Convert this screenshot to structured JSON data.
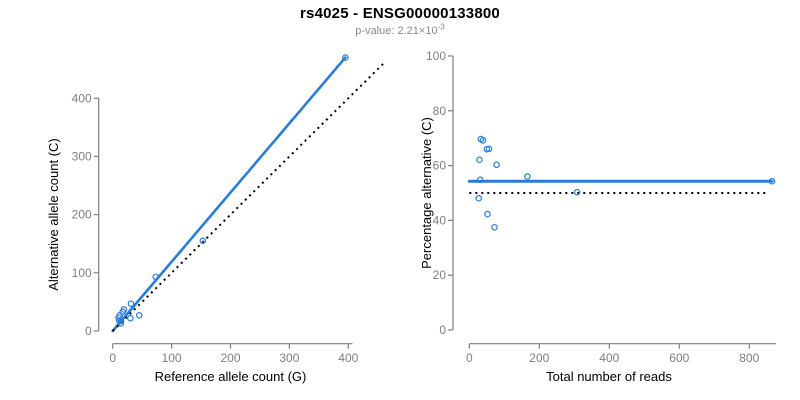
{
  "header": {
    "title": "rs4025 - ENSG00000133800",
    "subtitle_prefix": "p-value: ",
    "p_value_mantissa": "2.21",
    "times_ten": "×10",
    "p_value_exponent": "-3"
  },
  "colors": {
    "accent_blue": "#287CDC",
    "axis_gray": "#7f7f7f",
    "dotted_black": "#000000",
    "subtitle_gray": "#8a8a8a"
  },
  "chart_data": [
    {
      "id": "ref-vs-alt-scatter",
      "type": "scatter",
      "title": "",
      "xlabel": "Reference allele count (G)",
      "ylabel": "Alternative allele count (C)",
      "xlim": [
        0,
        410
      ],
      "ylim": [
        0,
        480
      ],
      "xticks": [
        0,
        100,
        200,
        300,
        400
      ],
      "yticks": [
        0,
        100,
        200,
        300,
        400
      ],
      "grid": false,
      "legend": null,
      "points": [
        [
          10,
          23
        ],
        [
          12,
          27
        ],
        [
          17,
          33
        ],
        [
          19,
          37
        ],
        [
          11,
          18
        ],
        [
          31,
          47
        ],
        [
          14,
          17
        ],
        [
          73,
          93
        ],
        [
          395,
          470
        ],
        [
          153,
          155
        ],
        [
          14,
          13
        ],
        [
          30,
          22
        ],
        [
          45,
          27
        ]
      ],
      "lines": [
        {
          "name": "fit-line",
          "style": "solid",
          "color": "#287CDC",
          "width": 2.6,
          "from": [
            0,
            0
          ],
          "to": [
            395,
            470
          ]
        },
        {
          "name": "identity-line",
          "style": "dotted",
          "color": "#000000",
          "width": 2,
          "from": [
            0,
            0
          ],
          "to": [
            460,
            460
          ]
        }
      ]
    },
    {
      "id": "reads-vs-percentage-scatter",
      "type": "scatter",
      "title": "",
      "xlabel": "Total number of reads",
      "ylabel": "Percentage alternative (C)",
      "xlim": [
        0,
        880
      ],
      "ylim": [
        0,
        100
      ],
      "xticks": [
        0,
        200,
        400,
        600,
        800
      ],
      "yticks": [
        0,
        20,
        40,
        60,
        80,
        100
      ],
      "grid": false,
      "legend": null,
      "points": [
        [
          33,
          69.7
        ],
        [
          39,
          69.2
        ],
        [
          50,
          66.0
        ],
        [
          56,
          66.1
        ],
        [
          29,
          62.1
        ],
        [
          78,
          60.3
        ],
        [
          31,
          54.8
        ],
        [
          166,
          56.0
        ],
        [
          865,
          54.3
        ],
        [
          308,
          50.3
        ],
        [
          27,
          48.1
        ],
        [
          52,
          42.3
        ],
        [
          72,
          37.5
        ]
      ],
      "lines": [
        {
          "name": "mean-line",
          "style": "solid",
          "color": "#287CDC",
          "width": 3,
          "from": [
            0,
            54.3
          ],
          "to": [
            865,
            54.3
          ]
        },
        {
          "name": "null-line",
          "style": "dotted",
          "color": "#000000",
          "width": 2,
          "from": [
            0,
            50
          ],
          "to": [
            850,
            50
          ]
        }
      ]
    }
  ]
}
